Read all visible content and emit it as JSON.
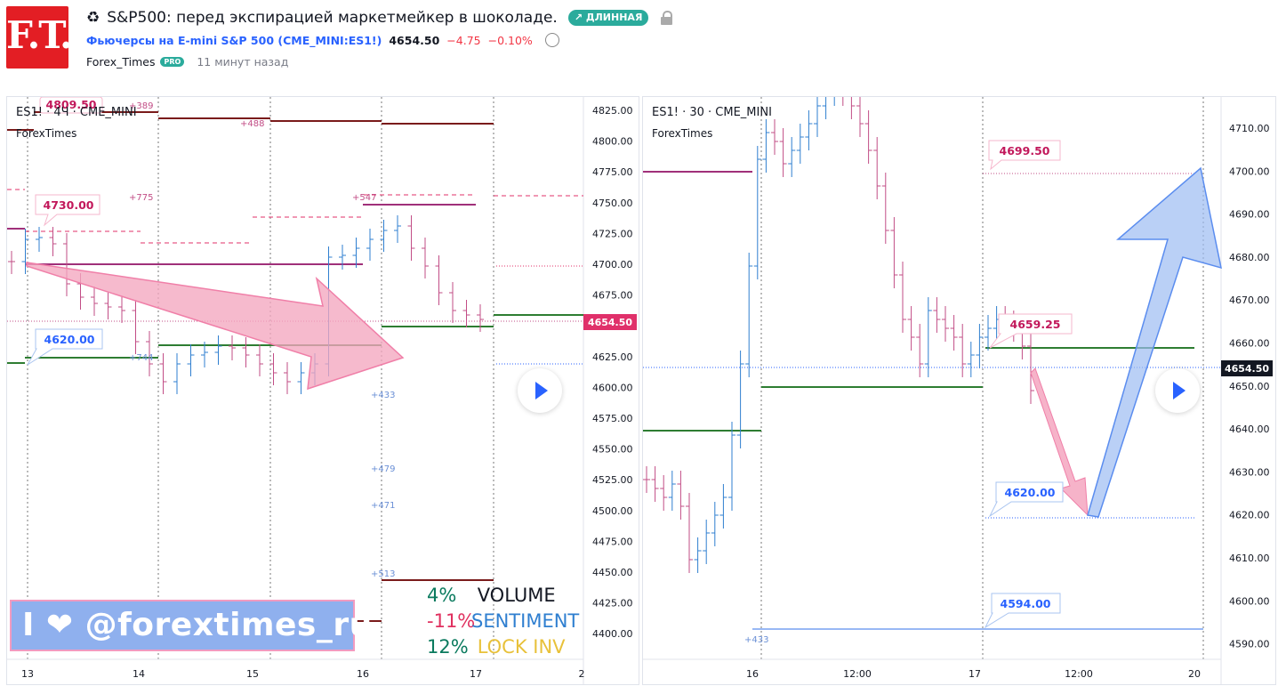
{
  "header": {
    "logo_text": "F.T.",
    "title_icon": "♻",
    "title": "S&P500: перед экспирацией маркетмейкер в шоколаде.",
    "direction_badge": "↗ ДЛИННАЯ",
    "symbol_link": "Фьючерсы на E-mini S&P 500 (CME_MINI:ES1!)",
    "price": "4654.50",
    "change": "−4.75",
    "change_pct": "−0.10%",
    "author": "Forex_Times",
    "author_badge": "PRO",
    "time_ago": "11 минут назад"
  },
  "chart_left": {
    "legend_symbol": "ES1! · 4Ч · CME_MINI",
    "legend_source": "ForexTimes",
    "price_axis": [
      "4825.00",
      "4800.00",
      "4775.00",
      "4750.00",
      "4725.00",
      "4700.00",
      "4675.00",
      "4650.00",
      "4625.00",
      "4600.00",
      "4575.00",
      "4550.00",
      "4525.00",
      "4500.00",
      "4475.00",
      "4450.00",
      "4425.00",
      "4400.00"
    ],
    "time_axis": [
      "13",
      "14",
      "15",
      "16",
      "17",
      "2"
    ],
    "current_price": "4654.50",
    "callouts": [
      "4809.50",
      "4730.00",
      "4620.00"
    ],
    "volume_labels": [
      "+389",
      "+488",
      "+775",
      "+547",
      "+744",
      "+433",
      "+479",
      "+471",
      "+513"
    ],
    "banner": "I ❤ @forextimes_ru",
    "stats": [
      {
        "pct": "4%",
        "label": "VOLUME",
        "pct_color": "#0a7a5e",
        "label_color": "#131722"
      },
      {
        "pct": "-11%",
        "label": "SENTIMENT",
        "pct_color": "#e0305f",
        "label_color": "#2f7fd0"
      },
      {
        "pct": "12%",
        "label": "LOCK INV",
        "pct_color": "#0a7a5e",
        "label_color": "#e8c13a"
      }
    ]
  },
  "chart_right": {
    "legend_symbol": "ES1! · 30 · CME_MINI",
    "legend_source": "ForexTimes",
    "price_axis": [
      "4710.00",
      "4700.00",
      "4690.00",
      "4680.00",
      "4670.00",
      "4660.00",
      "4650.00",
      "4640.00",
      "4630.00",
      "4620.00",
      "4610.00",
      "4600.00",
      "4590.00"
    ],
    "time_axis": [
      "16",
      "12:00",
      "17",
      "12:00",
      "20"
    ],
    "current_price": "4654.50",
    "callouts": [
      "4699.50",
      "4659.25",
      "4620.00",
      "4594.00"
    ],
    "volume_labels": [
      "+433"
    ]
  },
  "colors": {
    "up": "#2f7fd0",
    "down": "#c24d86",
    "arrow_pink": "#f4a6bf",
    "arrow_blue": "#9dbcf2",
    "level_green": "#2e7d32",
    "level_maroon": "#7a1b1b",
    "price_tag": "#e0306a"
  }
}
